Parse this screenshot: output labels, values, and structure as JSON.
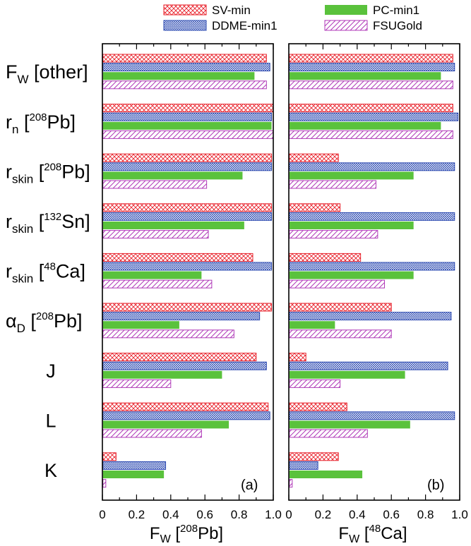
{
  "chart_data": [
    {
      "type": "bar",
      "orientation": "horizontal",
      "panel_label": "(a)",
      "xlabel": {
        "main": "F",
        "sub": "W",
        "open": " [",
        "sup": "208",
        "rest": "Pb]"
      },
      "xlim": [
        0,
        1
      ],
      "xticks": [
        "0",
        "0.2",
        "0.4",
        "0.6",
        "0.8",
        "1.0"
      ],
      "categories": [
        "F_W [other]",
        "r_n [208Pb]",
        "r_skin [208Pb]",
        "r_skin [132Sn]",
        "r_skin [48Ca]",
        "alpha_D [208Pb]",
        "J",
        "L",
        "K"
      ],
      "series": [
        {
          "name": "SV-min",
          "values": [
            0.96,
            1.0,
            0.99,
            0.99,
            0.88,
            0.99,
            0.9,
            0.97,
            0.08
          ]
        },
        {
          "name": "DDME-min1",
          "values": [
            0.98,
            0.99,
            0.99,
            0.99,
            0.99,
            0.92,
            0.96,
            0.98,
            0.37
          ]
        },
        {
          "name": "PC-min1",
          "values": [
            0.89,
            0.99,
            0.82,
            0.83,
            0.58,
            0.45,
            0.7,
            0.74,
            0.36
          ]
        },
        {
          "name": "FSUGold",
          "values": [
            0.96,
            1.0,
            0.61,
            0.62,
            0.64,
            0.77,
            0.4,
            0.58,
            0.02
          ]
        }
      ]
    },
    {
      "type": "bar",
      "orientation": "horizontal",
      "panel_label": "(b)",
      "xlabel": {
        "main": "F",
        "sub": "W",
        "open": " [",
        "sup": "48",
        "rest": "Ca]"
      },
      "xlim": [
        0,
        1
      ],
      "xticks": [
        "0",
        "0.2",
        "0.4",
        "0.6",
        "0.8",
        "1.0"
      ],
      "categories": [
        "F_W [other]",
        "r_n [208Pb]",
        "r_skin [208Pb]",
        "r_skin [132Sn]",
        "r_skin [48Ca]",
        "alpha_D [208Pb]",
        "J",
        "L",
        "K"
      ],
      "series": [
        {
          "name": "SV-min",
          "values": [
            0.96,
            0.96,
            0.29,
            0.3,
            0.42,
            0.6,
            0.1,
            0.34,
            0.29
          ]
        },
        {
          "name": "DDME-min1",
          "values": [
            0.97,
            0.99,
            0.97,
            0.97,
            0.97,
            0.95,
            0.93,
            0.97,
            0.17
          ]
        },
        {
          "name": "PC-min1",
          "values": [
            0.89,
            0.89,
            0.73,
            0.73,
            0.73,
            0.27,
            0.68,
            0.71,
            0.43
          ]
        },
        {
          "name": "FSUGold",
          "values": [
            0.96,
            0.96,
            0.51,
            0.52,
            0.56,
            0.6,
            0.3,
            0.46,
            0.02
          ]
        }
      ]
    }
  ],
  "legend": [
    {
      "name": "SV-min",
      "style": "crosshatch",
      "color": "#e8202a"
    },
    {
      "name": "PC-min1",
      "style": "solid",
      "color": "#5ac23c"
    },
    {
      "name": "DDME-min1",
      "style": "dense-dots",
      "color": "#2a48b0"
    },
    {
      "name": "FSUGold",
      "style": "diagonal",
      "color": "#b03ab8"
    }
  ],
  "category_labels": [
    {
      "base": "F",
      "sub": "W",
      "sup": "",
      "rest": " [other]"
    },
    {
      "base": "r",
      "sub": "n",
      "sup": "208",
      "rest": "Pb]",
      "open": " ["
    },
    {
      "base": "r",
      "sub": "skin",
      "sup": "208",
      "rest": "Pb]",
      "open": " ["
    },
    {
      "base": "r",
      "sub": "skin",
      "sup": "132",
      "rest": "Sn]",
      "open": " ["
    },
    {
      "base": "r",
      "sub": "skin",
      "sup": "48",
      "rest": "Ca]",
      "open": " ["
    },
    {
      "base": "α",
      "sub": "D",
      "sup": "208",
      "rest": "Pb]",
      "open": " ["
    },
    {
      "base": "J",
      "sub": "",
      "sup": "",
      "rest": ""
    },
    {
      "base": "L",
      "sub": "",
      "sup": "",
      "rest": ""
    },
    {
      "base": "K",
      "sub": "",
      "sup": "",
      "rest": ""
    }
  ]
}
